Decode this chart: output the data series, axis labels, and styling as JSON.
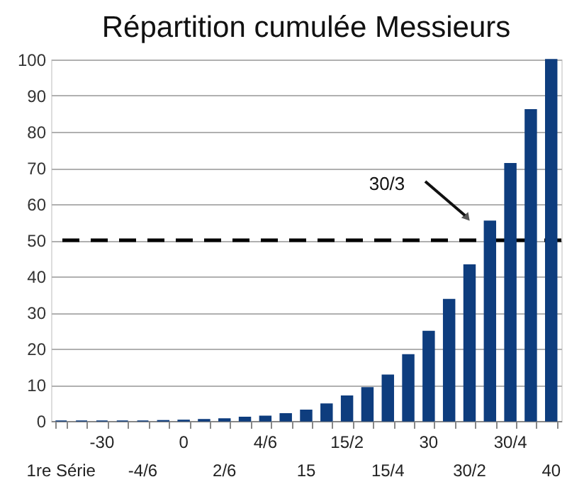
{
  "chart_data": {
    "type": "bar",
    "title": "Répartition cumulée Messieurs",
    "categories": [
      "1re Série",
      null,
      "-30",
      null,
      "-4/6",
      null,
      "0",
      null,
      "2/6",
      null,
      "4/6",
      null,
      "15",
      null,
      "15/2",
      null,
      "15/4",
      null,
      "30",
      null,
      "30/2",
      null,
      "30/4",
      null,
      "40"
    ],
    "values": [
      0,
      0,
      0,
      0,
      0,
      0.1,
      0.2,
      0.4,
      0.6,
      1.0,
      1.3,
      2.0,
      3.0,
      4.7,
      6.9,
      9.2,
      12.7,
      18.3,
      24.8,
      33.6,
      43.2,
      55.3,
      71.2,
      86.1,
      100
    ],
    "color": "#0e3d7e",
    "ylim": [
      0,
      100
    ],
    "yticks": [
      0,
      10,
      20,
      30,
      40,
      50,
      60,
      70,
      80,
      90,
      100
    ],
    "grid": "y",
    "ref_lines": [
      {
        "axis": "y",
        "value": 50,
        "color": "#000000",
        "line_style": "dashed"
      }
    ],
    "annotations": [
      "30/3"
    ]
  }
}
